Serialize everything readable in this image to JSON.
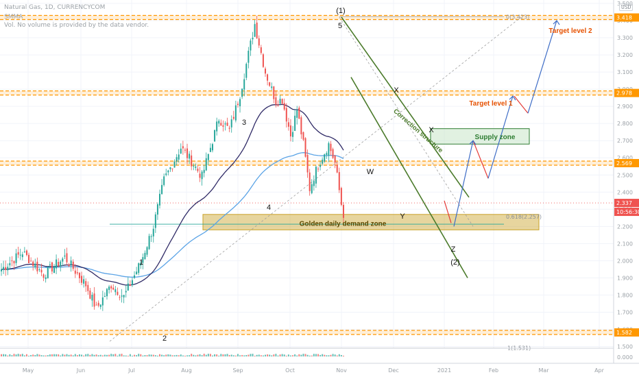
{
  "header": {
    "symbol": "Natural Gas, 1D, CURRENCYCOM",
    "indicator": "SMMA",
    "volume_note": "Vol. No volume is provided by the data vendor.",
    "currency": "USD"
  },
  "colors": {
    "bull": "#26a69a",
    "bear": "#ef5350",
    "level": "#ff9800",
    "smma_fast": "#2f2a66",
    "smma_slow": "#5aa3e6",
    "channel": "#4a7a2a",
    "projection": "#3d6cc6",
    "projection_down": "#e53935",
    "demand_zone": "#c9a227",
    "supply_zone": "#2e7d32",
    "target_text": "#e65100",
    "wave_text": "#111111"
  },
  "chart_data": {
    "type": "candlestick",
    "instrument": "Natural Gas",
    "timeframe": "1D",
    "x_axis_labels": [
      "May",
      "Jun",
      "Jul",
      "Aug",
      "Sep",
      "Oct",
      "Nov",
      "Dec",
      "2021",
      "Feb",
      "Mar",
      "Apr"
    ],
    "y_ticks": [
      3.5,
      3.4,
      3.3,
      3.2,
      3.1,
      3.0,
      2.9,
      2.8,
      2.7,
      2.6,
      2.5,
      2.4,
      2.3,
      2.2,
      2.1,
      2.0,
      1.9,
      1.8,
      1.7,
      1.6,
      1.5
    ],
    "ylim": [
      1.49,
      3.52
    ],
    "anchor_closes": [
      [
        0,
        1.95
      ],
      [
        10,
        2.05
      ],
      [
        20,
        1.92
      ],
      [
        30,
        2.02
      ],
      [
        40,
        1.86
      ],
      [
        45,
        1.72
      ],
      [
        52,
        1.86
      ],
      [
        58,
        1.79
      ],
      [
        66,
        1.99
      ],
      [
        72,
        2.2
      ],
      [
        77,
        2.47
      ],
      [
        85,
        2.66
      ],
      [
        90,
        2.58
      ],
      [
        95,
        2.49
      ],
      [
        103,
        2.83
      ],
      [
        108,
        2.76
      ],
      [
        113,
        2.97
      ],
      [
        120,
        3.38
      ],
      [
        125,
        3.1
      ],
      [
        130,
        2.93
      ],
      [
        133,
        2.94
      ],
      [
        137,
        2.73
      ],
      [
        140,
        2.88
      ],
      [
        143,
        2.68
      ],
      [
        146,
        2.42
      ],
      [
        150,
        2.56
      ],
      [
        155,
        2.68
      ],
      [
        158,
        2.57
      ],
      [
        162,
        2.25
      ]
    ],
    "price_levels": [
      {
        "value": 3.418,
        "label": "3.418"
      },
      {
        "value": 2.978,
        "label": "2.978"
      },
      {
        "value": 2.569,
        "label": "2.569"
      },
      {
        "value": 1.582,
        "label": "1.582"
      }
    ],
    "current_price": {
      "value": 2.337,
      "label": "2.337",
      "countdown": "10:56:30"
    },
    "fib_levels": [
      {
        "label": "0(3.423)",
        "value": 3.423
      },
      {
        "label": "0.618(2.257)",
        "value": 2.257
      },
      {
        "label": "1(1.531)",
        "value": 1.531
      }
    ],
    "zones": [
      {
        "name": "Golden daily demand zone",
        "top": 2.27,
        "bottom": 2.18
      },
      {
        "name": "Supply zone",
        "top": 2.77,
        "bottom": 2.68
      }
    ],
    "targets": [
      {
        "name": "Target level 1",
        "value": 2.978
      },
      {
        "name": "Target level 2",
        "value": 3.418
      }
    ],
    "channel_label": "Correction structure",
    "wave_labels": [
      "1",
      "2",
      "3",
      "4",
      "5",
      "(1)",
      "W",
      "X",
      "Y",
      "X",
      "Z",
      "(2)"
    ],
    "volume_axis_label": "0.000"
  }
}
